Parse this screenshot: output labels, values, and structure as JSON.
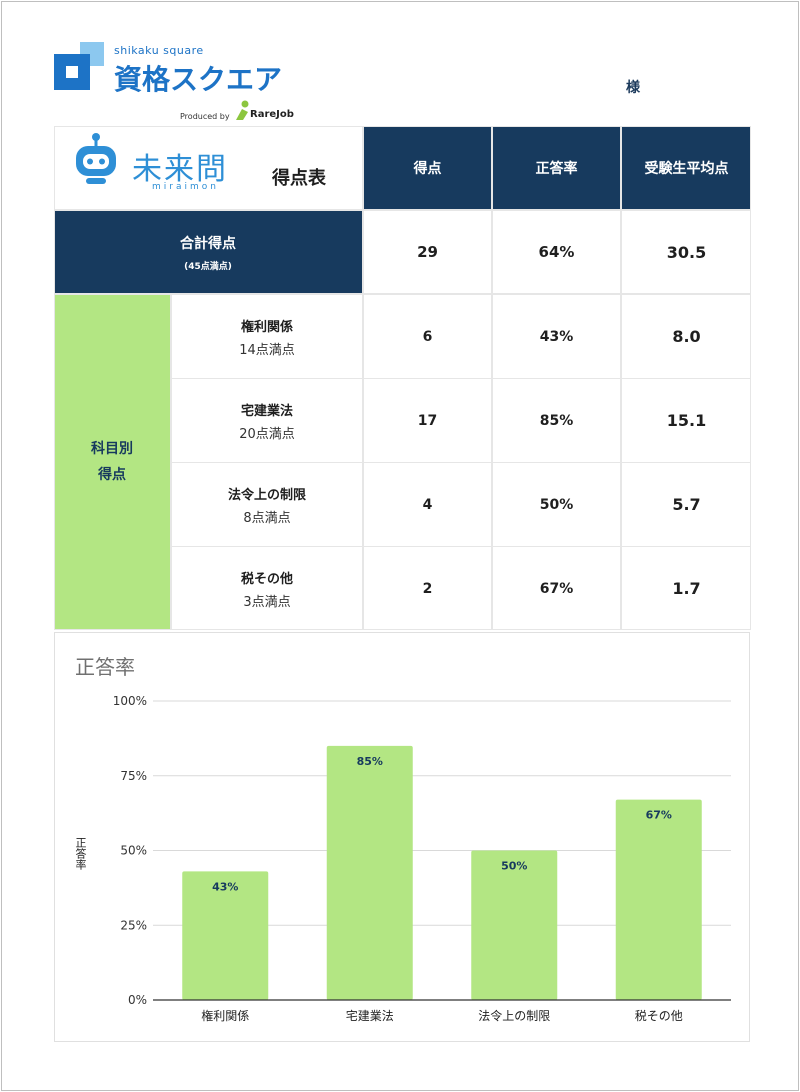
{
  "header": {
    "brand_sub": "shikaku square",
    "brand_main": "資格スクエア",
    "produced_by": "Produced by",
    "partner": "RareJob",
    "honorific": "様"
  },
  "table": {
    "mirai_logo": "未来問",
    "mirai_logo_sub": "miraimon",
    "title": "得点表",
    "col_headers": [
      "得点",
      "正答率",
      "受験生平均点"
    ],
    "total": {
      "label": "合計得点",
      "sublabel": "(45点満点)",
      "score": "29",
      "rate": "64%",
      "average": "30.5"
    },
    "subject_group_label_1": "科目別",
    "subject_group_label_2": "得点",
    "subjects": [
      {
        "name": "権利関係",
        "max": "14点満点",
        "score": "6",
        "rate": "43%",
        "average": "8.0"
      },
      {
        "name": "宅建業法",
        "max": "20点満点",
        "score": "17",
        "rate": "85%",
        "average": "15.1"
      },
      {
        "name": "法令上の制限",
        "max": "8点満点",
        "score": "4",
        "rate": "50%",
        "average": "5.7"
      },
      {
        "name": "税その他",
        "max": "3点満点",
        "score": "2",
        "rate": "67%",
        "average": "1.7"
      }
    ]
  },
  "chart_data": {
    "type": "bar",
    "title": "正答率",
    "ylabel": "正答率",
    "xlabel": "",
    "categories": [
      "権利関係",
      "宅建業法",
      "法令上の制限",
      "税その他"
    ],
    "values": [
      43,
      85,
      50,
      67
    ],
    "data_labels": [
      "43%",
      "85%",
      "50%",
      "67%"
    ],
    "ylim": [
      0,
      100
    ],
    "yticks": [
      "0%",
      "25%",
      "50%",
      "75%",
      "100%"
    ],
    "grid": true,
    "legend": "none",
    "bar_color": "#b3e683",
    "label_color": "#173a5e"
  },
  "colors": {
    "navy": "#173a5e",
    "green": "#b3e683",
    "brand_blue": "#1d73c6"
  }
}
